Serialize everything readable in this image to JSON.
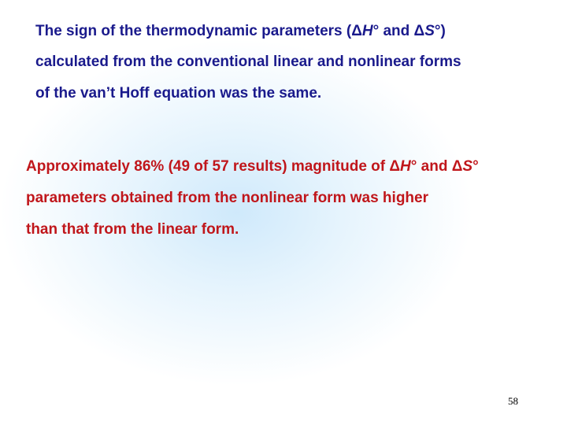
{
  "paragraphs": [
    [
      [
        "The sign of the thermodynamic parameters (Δ",
        "H",
        "° and Δ",
        "S",
        "°)"
      ],
      [
        "calculated from the conventional linear and nonlinear forms"
      ],
      [
        "of the van’t Hoff equation was the same."
      ]
    ],
    [
      [
        "Approximately 86% (49 of 57 results) magnitude of Δ",
        "H",
        "° and Δ",
        "S",
        "°"
      ],
      [
        "parameters obtained from the nonlinear form was higher"
      ],
      [
        "than that from the linear form."
      ]
    ]
  ],
  "page_number": "58"
}
